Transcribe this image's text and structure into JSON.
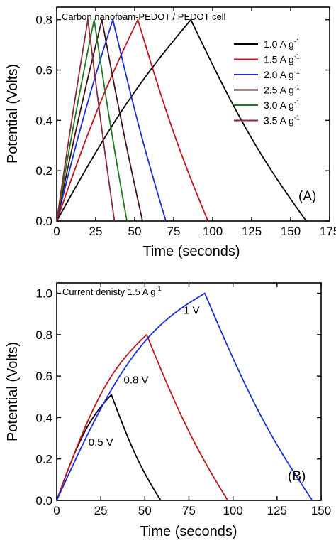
{
  "chart_data": [
    {
      "type": "line",
      "panel_label": "(A)",
      "title": "Carbon nanofoam-PEDOT / PEDOT cell",
      "xlabel": "Time (seconds)",
      "ylabel": "Potential (Volts)",
      "xlim": [
        0,
        175
      ],
      "ylim": [
        0,
        0.85
      ],
      "xticks": [
        0,
        25,
        50,
        75,
        100,
        125,
        150,
        175
      ],
      "yticks": [
        0.0,
        0.2,
        0.4,
        0.6,
        0.8
      ],
      "tick_decimals": 1,
      "legend_position": "top-right",
      "series": [
        {
          "name": "1.0 A g",
          "superscript": "-1",
          "color": "#000000",
          "x": [
            0,
            86,
            160
          ],
          "y": [
            0,
            0.8,
            0
          ],
          "charge_curvature": 0.05,
          "discharge_curvature": -0.05
        },
        {
          "name": "1.5 A g",
          "superscript": "-1",
          "color": "#c0141e",
          "x": [
            0,
            52,
            97
          ],
          "y": [
            0,
            0.8,
            0
          ],
          "charge_curvature": 0.04,
          "discharge_curvature": -0.04
        },
        {
          "name": "2.0 A g",
          "superscript": "-1",
          "color": "#1a2fd6",
          "x": [
            0,
            36,
            70
          ],
          "y": [
            0,
            0.8,
            0
          ],
          "charge_curvature": 0.03,
          "discharge_curvature": -0.03
        },
        {
          "name": "2.5 A g",
          "superscript": "-1",
          "color": "#3d1410",
          "x": [
            0,
            29,
            55
          ],
          "y": [
            0,
            0.8,
            0
          ],
          "charge_curvature": 0.02,
          "discharge_curvature": -0.02
        },
        {
          "name": "3.0 A g",
          "superscript": "-1",
          "color": "#1e7a1e",
          "x": [
            0,
            24,
            45
          ],
          "y": [
            0,
            0.8,
            0
          ],
          "charge_curvature": 0.02,
          "discharge_curvature": -0.02
        },
        {
          "name": "3.5 A g",
          "superscript": "-1",
          "color": "#8b2a3a",
          "x": [
            0,
            20,
            37
          ],
          "y": [
            0,
            0.8,
            0
          ],
          "charge_curvature": 0.015,
          "discharge_curvature": -0.015
        }
      ]
    },
    {
      "type": "line",
      "panel_label": "(B)",
      "title": "Current denisty 1.5 A g",
      "title_superscript": "-1",
      "xlabel": "Time (seconds)",
      "ylabel": "Potential (Volts)",
      "xlim": [
        0,
        150
      ],
      "ylim": [
        0,
        1.05
      ],
      "xticks": [
        0,
        25,
        50,
        75,
        100,
        125,
        150
      ],
      "yticks": [
        0.0,
        0.2,
        0.4,
        0.6,
        0.8,
        1.0
      ],
      "tick_decimals": 1,
      "series": [
        {
          "color": "#000000",
          "x": [
            0,
            31,
            59
          ],
          "y": [
            0,
            0.51,
            0
          ],
          "charge_curvature": 0.07,
          "discharge_curvature": -0.04
        },
        {
          "color": "#c0141e",
          "x": [
            0,
            51,
            97
          ],
          "y": [
            0,
            0.8,
            0
          ],
          "charge_curvature": 0.12,
          "discharge_curvature": -0.05
        },
        {
          "color": "#1a2fd6",
          "x": [
            0,
            84,
            145
          ],
          "y": [
            0,
            1.0,
            0
          ],
          "charge_curvature": 0.18,
          "discharge_curvature": -0.07
        }
      ],
      "annotations": [
        {
          "text": "0.5 V",
          "x": 18,
          "y": 0.265
        },
        {
          "text": "0.8 V",
          "x": 38,
          "y": 0.565
        },
        {
          "text": "1 V",
          "x": 72,
          "y": 0.9
        }
      ]
    }
  ]
}
